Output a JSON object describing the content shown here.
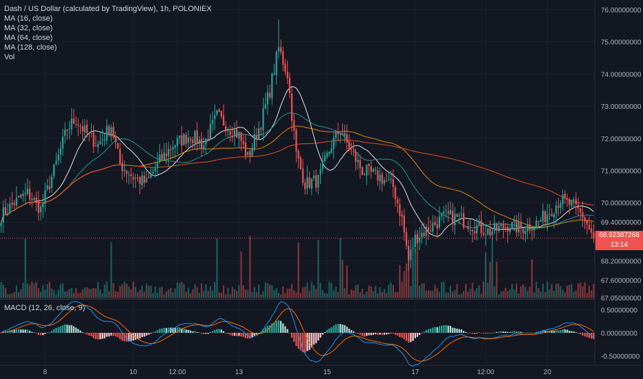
{
  "legend": {
    "title": "Dash / US Dollar (calculated by TradingView), 1h, POLONIEX",
    "ma16": "MA (16, close)",
    "ma32": "MA (32, close)",
    "ma64": "MA (64, close)",
    "ma128": "MA (128, close)",
    "vol": "Vol",
    "macd": "MACD (12, 26, close, 9)"
  },
  "last_price": "68.92387268",
  "countdown": "13:14",
  "colors": {
    "background": "#131722",
    "up": "#26a69a",
    "down": "#ef5350",
    "ma16": "#ffffff",
    "ma32": "#26a69a",
    "ma64": "#ff9800",
    "ma128": "#ff5722",
    "macd_line": "#2196f3",
    "signal_line": "#ff6d00",
    "grid": "#1e222d"
  },
  "chart_data": {
    "type": "candlestick",
    "price_axis": {
      "range": [
        67.05,
        76.3
      ],
      "ticks": [
        "76.00000000",
        "75.00000000",
        "74.00000000",
        "73.00000000",
        "72.00000000",
        "71.00000000",
        "70.00000000",
        "69.40000000",
        "68.20000000",
        "67.60000000",
        "67.05000000"
      ],
      "tick_values": [
        76.0,
        75.0,
        74.0,
        73.0,
        72.0,
        71.0,
        70.0,
        69.4,
        68.2,
        67.6,
        67.05
      ]
    },
    "macd_axis": {
      "range": [
        -0.7,
        0.7
      ],
      "ticks": [
        "0.50000000",
        "0.00000000",
        "-0.50000000"
      ],
      "tick_values": [
        0.5,
        0.0,
        -0.5
      ]
    },
    "time_axis": {
      "labels": [
        "8",
        "10",
        "12:00",
        "13",
        "15",
        "17",
        "12:00",
        "20"
      ],
      "positions": [
        20,
        60,
        80,
        108,
        148,
        188,
        220,
        248
      ]
    },
    "bar_count": 270,
    "close_keypoints": [
      [
        0,
        69.6
      ],
      [
        6,
        70.0
      ],
      [
        12,
        70.3
      ],
      [
        18,
        69.8
      ],
      [
        24,
        71.0
      ],
      [
        30,
        72.3
      ],
      [
        34,
        72.6
      ],
      [
        38,
        72.2
      ],
      [
        44,
        71.8
      ],
      [
        50,
        72.4
      ],
      [
        54,
        71.2
      ],
      [
        60,
        70.8
      ],
      [
        66,
        70.6
      ],
      [
        72,
        71.3
      ],
      [
        78,
        71.8
      ],
      [
        86,
        72.1
      ],
      [
        92,
        71.8
      ],
      [
        98,
        72.7
      ],
      [
        104,
        72.3
      ],
      [
        108,
        72.1
      ],
      [
        112,
        71.4
      ],
      [
        118,
        72.5
      ],
      [
        122,
        73.5
      ],
      [
        126,
        74.8
      ],
      [
        130,
        74.0
      ],
      [
        134,
        71.5
      ],
      [
        138,
        70.6
      ],
      [
        144,
        70.7
      ],
      [
        150,
        71.8
      ],
      [
        154,
        72.3
      ],
      [
        158,
        71.7
      ],
      [
        164,
        71.0
      ],
      [
        172,
        70.8
      ],
      [
        178,
        70.5
      ],
      [
        182,
        69.5
      ],
      [
        185,
        68.2
      ],
      [
        188,
        68.9
      ],
      [
        194,
        69.2
      ],
      [
        202,
        69.6
      ],
      [
        208,
        69.5
      ],
      [
        214,
        69.3
      ],
      [
        222,
        69.1
      ],
      [
        230,
        69.3
      ],
      [
        236,
        69.2
      ],
      [
        244,
        69.4
      ],
      [
        250,
        69.8
      ],
      [
        254,
        70.1
      ],
      [
        260,
        69.9
      ],
      [
        264,
        69.6
      ],
      [
        269,
        68.9
      ]
    ],
    "moving_averages": [
      "MA 16",
      "MA 32",
      "MA 64",
      "MA 128"
    ],
    "indicators": [
      "Volume",
      "MACD (12, 26, close, 9)"
    ]
  }
}
